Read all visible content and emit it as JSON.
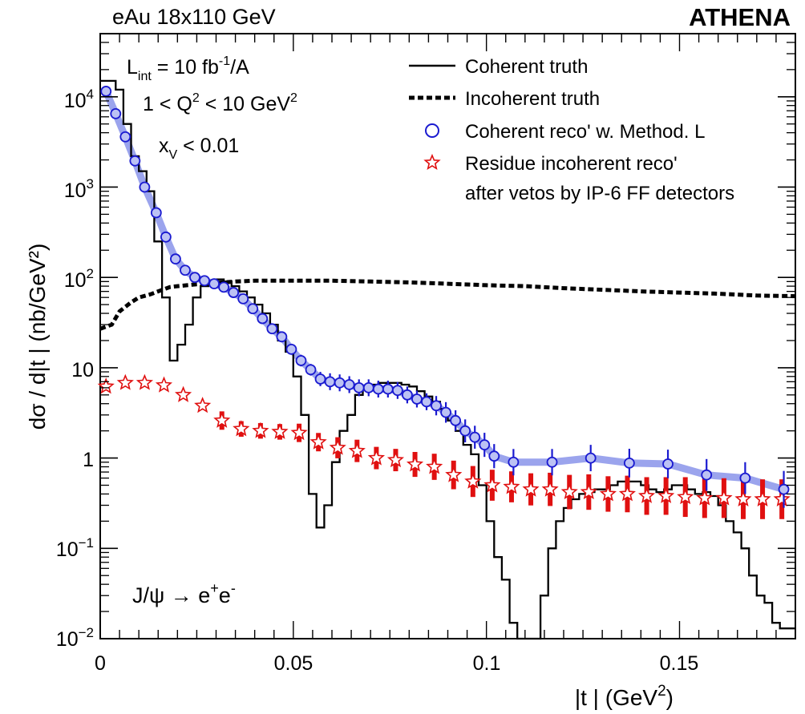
{
  "header": {
    "left_title": "eAu 18x110 GeV",
    "right_title": "ATHENA"
  },
  "annotations": {
    "lumi_main": "L",
    "lumi_sub": "int",
    "lumi_rest": " = 10 fb",
    "lumi_sup": "-1",
    "lumi_tail": "/A",
    "q2_text": "1 < Q",
    "q2_sup": "2",
    "q2_rest": " < 10 GeV",
    "q2_sup2": "2",
    "xv_main": "x",
    "xv_sub": "V",
    "xv_rest": " < 0.01",
    "decay": "J/ψ → e",
    "decay_sup1": "+",
    "decay_mid": "e",
    "decay_sup2": "-"
  },
  "axes": {
    "ylabel": "dσ / d|t |  (nb/GeV²)",
    "xlabel_pre": "|t | (GeV",
    "xlabel_sup": "2",
    "xlabel_post": ")",
    "xtick_labels": [
      "0",
      "0.05",
      "0.1",
      "0.15"
    ],
    "ytick_labels": [
      "10⁻²",
      "10⁻¹",
      "1",
      "10",
      "10²",
      "10³",
      "10⁴"
    ]
  },
  "legend": [
    {
      "label": "Coherent truth",
      "style": "solid-line",
      "color": "#000000"
    },
    {
      "label": "Incoherent truth",
      "style": "dashed-line",
      "color": "#000000"
    },
    {
      "label": "Coherent reco' w. Method. L",
      "style": "open-circle",
      "color": "#1a1ad0"
    },
    {
      "label": "Residue incoherent reco'",
      "style": "open-star",
      "color": "#e01010"
    },
    {
      "label": "after vetos by IP-6 FF detectors",
      "style": "none",
      "color": "#000000"
    }
  ],
  "chart_data": {
    "type": "scatter",
    "log_y": true,
    "xlim": [
      0,
      0.18
    ],
    "ylim": [
      0.01,
      50000
    ],
    "xticks": [
      0,
      0.05,
      0.1,
      0.15
    ],
    "legend_position": "top-right",
    "colors": {
      "coherent_reco": "#1a1ad0",
      "coherent_band": "#8a94ea",
      "residue": "#e01010",
      "truth": "#000000"
    },
    "coherent_truth_steps": [
      [
        0,
        15000
      ],
      [
        0.002,
        15000
      ],
      [
        0.004,
        12000
      ],
      [
        0.006,
        5000
      ],
      [
        0.008,
        2200
      ],
      [
        0.01,
        1500
      ],
      [
        0.012,
        900
      ],
      [
        0.014,
        250
      ],
      [
        0.016,
        60
      ],
      [
        0.018,
        12
      ],
      [
        0.02,
        18
      ],
      [
        0.022,
        30
      ],
      [
        0.024,
        60
      ],
      [
        0.026,
        80
      ],
      [
        0.028,
        90
      ],
      [
        0.03,
        95
      ],
      [
        0.032,
        90
      ],
      [
        0.034,
        80
      ],
      [
        0.036,
        70
      ],
      [
        0.038,
        60
      ],
      [
        0.04,
        50
      ],
      [
        0.042,
        40
      ],
      [
        0.044,
        30
      ],
      [
        0.046,
        20
      ],
      [
        0.048,
        15
      ],
      [
        0.05,
        8
      ],
      [
        0.052,
        3
      ],
      [
        0.054,
        0.4
      ],
      [
        0.056,
        0.17
      ],
      [
        0.058,
        0.3
      ],
      [
        0.06,
        0.9
      ],
      [
        0.062,
        2
      ],
      [
        0.064,
        3
      ],
      [
        0.066,
        5
      ],
      [
        0.068,
        6
      ],
      [
        0.07,
        6.5
      ],
      [
        0.072,
        6.8
      ],
      [
        0.074,
        6.8
      ],
      [
        0.076,
        6.8
      ],
      [
        0.078,
        6.5
      ],
      [
        0.08,
        6.2
      ],
      [
        0.082,
        5.5
      ],
      [
        0.084,
        4.8
      ],
      [
        0.086,
        4.2
      ],
      [
        0.088,
        3.5
      ],
      [
        0.09,
        2.6
      ],
      [
        0.092,
        2.0
      ],
      [
        0.094,
        1.4
      ],
      [
        0.096,
        1.1
      ],
      [
        0.098,
        0.5
      ],
      [
        0.1,
        0.2
      ],
      [
        0.102,
        0.08
      ],
      [
        0.104,
        0.045
      ],
      [
        0.106,
        0.015
      ],
      [
        0.108,
        0.005
      ],
      [
        0.11,
        0.004
      ],
      [
        0.112,
        0.01
      ],
      [
        0.114,
        0.03
      ],
      [
        0.116,
        0.1
      ],
      [
        0.118,
        0.2
      ],
      [
        0.12,
        0.28
      ],
      [
        0.122,
        0.35
      ],
      [
        0.124,
        0.4
      ],
      [
        0.126,
        0.42
      ],
      [
        0.128,
        0.45
      ],
      [
        0.13,
        0.45
      ],
      [
        0.132,
        0.5
      ],
      [
        0.134,
        0.55
      ],
      [
        0.136,
        0.55
      ],
      [
        0.138,
        0.55
      ],
      [
        0.14,
        0.5
      ],
      [
        0.142,
        0.45
      ],
      [
        0.144,
        0.42
      ],
      [
        0.146,
        0.45
      ],
      [
        0.148,
        0.5
      ],
      [
        0.15,
        0.5
      ],
      [
        0.152,
        0.45
      ],
      [
        0.154,
        0.4
      ],
      [
        0.156,
        0.42
      ],
      [
        0.158,
        0.38
      ],
      [
        0.16,
        0.3
      ],
      [
        0.162,
        0.2
      ],
      [
        0.164,
        0.15
      ],
      [
        0.166,
        0.1
      ],
      [
        0.168,
        0.05
      ],
      [
        0.17,
        0.03
      ],
      [
        0.172,
        0.025
      ],
      [
        0.174,
        0.015
      ],
      [
        0.176,
        0.013
      ],
      [
        0.178,
        0.013
      ],
      [
        0.18,
        0.013
      ]
    ],
    "incoherent_truth": [
      [
        0.0,
        27
      ],
      [
        0.003,
        30
      ],
      [
        0.005,
        42
      ],
      [
        0.008,
        53
      ],
      [
        0.01,
        60
      ],
      [
        0.013,
        65
      ],
      [
        0.015,
        70
      ],
      [
        0.018,
        78
      ],
      [
        0.02,
        80
      ],
      [
        0.025,
        84
      ],
      [
        0.03,
        87
      ],
      [
        0.035,
        90
      ],
      [
        0.04,
        92
      ],
      [
        0.05,
        92
      ],
      [
        0.06,
        92
      ],
      [
        0.07,
        90
      ],
      [
        0.08,
        88
      ],
      [
        0.09,
        85
      ],
      [
        0.1,
        82
      ],
      [
        0.11,
        80
      ],
      [
        0.12,
        76
      ],
      [
        0.13,
        73
      ],
      [
        0.14,
        70
      ],
      [
        0.15,
        68
      ],
      [
        0.16,
        66
      ],
      [
        0.17,
        63
      ],
      [
        0.18,
        62
      ]
    ],
    "coherent_reco": [
      [
        0.0015,
        11500,
        0
      ],
      [
        0.004,
        6500,
        0
      ],
      [
        0.0065,
        3600,
        0
      ],
      [
        0.009,
        1950,
        0
      ],
      [
        0.0115,
        1000,
        0
      ],
      [
        0.0145,
        520,
        0
      ],
      [
        0.017,
        280,
        0
      ],
      [
        0.0195,
        160,
        0
      ],
      [
        0.022,
        120,
        0
      ],
      [
        0.0245,
        100,
        0
      ],
      [
        0.027,
        92,
        0
      ],
      [
        0.0295,
        85,
        0
      ],
      [
        0.032,
        78,
        0
      ],
      [
        0.0345,
        68,
        0
      ],
      [
        0.037,
        58,
        0
      ],
      [
        0.0395,
        45,
        0
      ],
      [
        0.042,
        35,
        0
      ],
      [
        0.0445,
        27,
        0
      ],
      [
        0.047,
        22,
        0
      ],
      [
        0.0495,
        16,
        0
      ],
      [
        0.052,
        12,
        0.08
      ],
      [
        0.0545,
        9.5,
        0.08
      ],
      [
        0.057,
        7.5,
        0.1
      ],
      [
        0.0595,
        7.0,
        0.12
      ],
      [
        0.062,
        6.8,
        0.12
      ],
      [
        0.0645,
        6.5,
        0.12
      ],
      [
        0.067,
        6.0,
        0.12
      ],
      [
        0.0695,
        6.0,
        0.12
      ],
      [
        0.072,
        5.8,
        0.12
      ],
      [
        0.0745,
        5.8,
        0.12
      ],
      [
        0.077,
        5.6,
        0.12
      ],
      [
        0.0795,
        5.0,
        0.12
      ],
      [
        0.082,
        4.5,
        0.12
      ],
      [
        0.0845,
        4.2,
        0.12
      ],
      [
        0.087,
        3.8,
        0.14
      ],
      [
        0.0895,
        3.2,
        0.15
      ],
      [
        0.092,
        2.6,
        0.15
      ],
      [
        0.0945,
        2.0,
        0.17
      ],
      [
        0.097,
        1.7,
        0.17
      ],
      [
        0.0995,
        1.4,
        0.18
      ],
      [
        0.102,
        1.05,
        0.18
      ],
      [
        0.107,
        0.9,
        0.2
      ],
      [
        0.117,
        0.9,
        0.2
      ],
      [
        0.127,
        1.0,
        0.2
      ],
      [
        0.137,
        0.88,
        0.22
      ],
      [
        0.147,
        0.86,
        0.22
      ],
      [
        0.157,
        0.65,
        0.25
      ],
      [
        0.167,
        0.6,
        0.25
      ],
      [
        0.177,
        0.45,
        0.3
      ]
    ],
    "residue_incoherent_reco": [
      [
        0.0015,
        6.2,
        0
      ],
      [
        0.0065,
        6.8,
        0
      ],
      [
        0.0115,
        6.8,
        0
      ],
      [
        0.0165,
        6.4,
        0
      ],
      [
        0.0215,
        5.0,
        0
      ],
      [
        0.0265,
        3.8,
        0
      ],
      [
        0.0315,
        2.6,
        0.12
      ],
      [
        0.0365,
        2.1,
        0.1
      ],
      [
        0.0415,
        2.0,
        0.1
      ],
      [
        0.0465,
        1.95,
        0.1
      ],
      [
        0.0515,
        1.9,
        0.12
      ],
      [
        0.0565,
        1.5,
        0.12
      ],
      [
        0.0615,
        1.3,
        0.14
      ],
      [
        0.0665,
        1.2,
        0.15
      ],
      [
        0.0715,
        1.0,
        0.15
      ],
      [
        0.0765,
        0.95,
        0.15
      ],
      [
        0.0815,
        0.85,
        0.17
      ],
      [
        0.0865,
        0.8,
        0.18
      ],
      [
        0.0915,
        0.65,
        0.2
      ],
      [
        0.0965,
        0.55,
        0.22
      ],
      [
        0.1015,
        0.5,
        0.22
      ],
      [
        0.1065,
        0.48,
        0.22
      ],
      [
        0.1115,
        0.45,
        0.23
      ],
      [
        0.1165,
        0.45,
        0.24
      ],
      [
        0.1215,
        0.42,
        0.25
      ],
      [
        0.1265,
        0.42,
        0.26
      ],
      [
        0.1315,
        0.4,
        0.26
      ],
      [
        0.1365,
        0.4,
        0.27
      ],
      [
        0.1415,
        0.38,
        0.28
      ],
      [
        0.1465,
        0.38,
        0.28
      ],
      [
        0.1515,
        0.37,
        0.3
      ],
      [
        0.1565,
        0.36,
        0.3
      ],
      [
        0.1615,
        0.36,
        0.3
      ],
      [
        0.1665,
        0.35,
        0.3
      ],
      [
        0.1715,
        0.35,
        0.3
      ],
      [
        0.1765,
        0.35,
        0.3
      ]
    ]
  }
}
